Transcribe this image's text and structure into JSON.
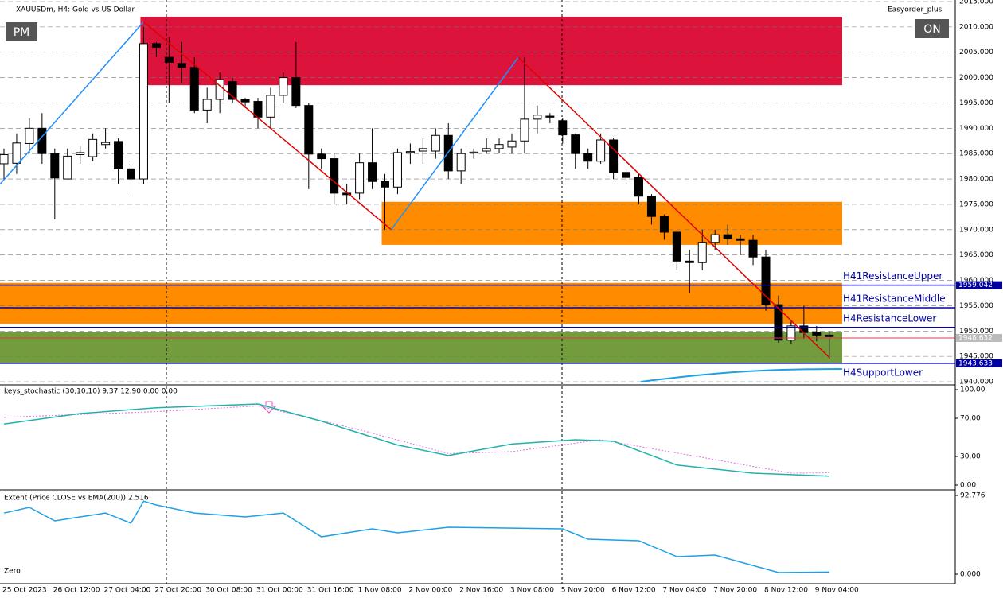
{
  "header": {
    "symbol": "XAUUSDm, H4:  Gold vs US Dollar",
    "expert": "Easyorder_plus",
    "left_button": "PM",
    "right_button": "ON"
  },
  "chart_data": {
    "type": "candlestick",
    "categories": [
      "25 Oct 2023",
      null,
      null,
      null,
      "26 Oct 12:00",
      null,
      null,
      null,
      "27 Oct 04:00",
      null,
      null,
      null,
      "27 Oct 20:00",
      null,
      null,
      null,
      "30 Oct 08:00",
      null,
      null,
      null,
      "31 Oct 00:00",
      null,
      null,
      null,
      "31 Oct 16:00",
      null,
      null,
      null,
      "1 Nov 08:00",
      null,
      null,
      null,
      "2 Nov 00:00",
      null,
      null,
      null,
      "2 Nov 16:00",
      null,
      null,
      null,
      "3 Nov 08:00",
      null,
      null,
      null,
      "5 Nov 20:00",
      null,
      null,
      null,
      "6 Nov 12:00",
      null,
      null,
      null,
      "7 Nov 04:00",
      null,
      null,
      null,
      "7 Nov 20:00",
      null,
      null,
      null,
      "8 Nov 12:00",
      null,
      null,
      null,
      "9 Nov 04:00",
      null
    ],
    "open": [
      1983,
      1983.1,
      1987,
      1990,
      1985,
      1980,
      1984.8,
      1984.4,
      1986.8,
      1987.4,
      1982,
      1980,
      2006.7,
      2004,
      2002.8,
      2002,
      1993.6,
      1995.7,
      1999.2,
      1995.7,
      1995.3,
      1992.2,
      1996.5,
      2000,
      1994.5,
      1984.9,
      1984,
      1977.2,
      1977.2,
      1983.2,
      1979.5,
      1978.4,
      1985.2,
      1985.5,
      1985.5,
      1988.6,
      1981.6,
      1985.1,
      1985.5,
      1986,
      1986.3,
      1987.5,
      1991.8,
      1992.4,
      1991.5,
      1988.7,
      1985,
      1983.5,
      1987.7,
      1981.3,
      1980.3,
      1976.6,
      1972.6,
      1969.5,
      1963.8,
      1963.5,
      1967.5,
      1969,
      1968.2,
      1967.9,
      1964.6,
      1955.2,
      1948.2,
      1951,
      1949.7,
      1949.2
    ],
    "high": [
      1986,
      1989,
      1992,
      1993,
      1986,
      1986,
      1986.5,
      1989,
      1990,
      1988,
      1983,
      2010,
      2007,
      2008,
      2007,
      2004,
      1998,
      2001,
      2000,
      1996,
      1996,
      1998,
      2001,
      2007,
      1995,
      1986,
      1985,
      1979,
      1985,
      1990,
      1981,
      1986,
      1987,
      1988,
      1990,
      1991,
      1986,
      1986,
      1988,
      1988,
      1989,
      2004,
      1994.5,
      1993,
      1992,
      1989,
      1986,
      1989,
      1988,
      1982,
      1981,
      1977,
      1973,
      1970,
      1966,
      1970,
      1970,
      1971,
      1969,
      1969,
      1966,
      1957,
      1952,
      1955,
      1951,
      1950
    ],
    "low": [
      1980,
      1981,
      1985,
      1983,
      1972,
      1980,
      1983,
      1983.5,
      1986,
      1979,
      1977,
      1979,
      2004,
      1995,
      1999,
      1993,
      1991,
      1993,
      1995,
      1994,
      1990,
      1990,
      1995,
      1994,
      1978,
      1982,
      1975,
      1975,
      1976,
      1978,
      1970,
      1977,
      1983,
      1983,
      1984,
      1980,
      1979,
      1984,
      1985,
      1985,
      1985,
      1985,
      1989,
      1991,
      1987,
      1982,
      1982,
      1983,
      1980,
      1979,
      1975,
      1971,
      1968,
      1962,
      1957.5,
      1962,
      1966,
      1967,
      1965,
      1963,
      1954,
      1947.7,
      1947.5,
      1948.5,
      1948,
      1944.5
    ],
    "close": [
      1984.8,
      1987.1,
      1990,
      1985,
      1980.2,
      1984.5,
      1985.2,
      1987.8,
      1987.2,
      1982,
      1980,
      2006.7,
      2006,
      2003,
      2002,
      1993.6,
      1995.7,
      1999.6,
      1995.7,
      1995.2,
      1992.2,
      1996.5,
      2000,
      1994.5,
      1984.9,
      1984,
      1977.2,
      1976.9,
      1983.2,
      1979.5,
      1978.4,
      1985.2,
      1985.4,
      1986,
      1988.6,
      1981.6,
      1985,
      1985.3,
      1986,
      1986.8,
      1987.5,
      1991.8,
      1992.6,
      1992.2,
      1988.7,
      1985,
      1983.5,
      1987.7,
      1981.3,
      1980.3,
      1976.6,
      1972.6,
      1969.5,
      1963.8,
      1963.5,
      1967.5,
      1969,
      1968.2,
      1967.9,
      1964.6,
      1955.2,
      1948.2,
      1951,
      1949.7,
      1949.2,
      1948.9
    ],
    "ylim": [
      1940,
      2015
    ],
    "yticks": [
      {
        "value": 2015,
        "label": "2015.000"
      },
      {
        "value": 2010,
        "label": "2010.000"
      },
      {
        "value": 2005,
        "label": "2005.000"
      },
      {
        "value": 2000,
        "label": "2000.000"
      },
      {
        "value": 1995,
        "label": "1995.000"
      },
      {
        "value": 1990,
        "label": "1990.000"
      },
      {
        "value": 1985,
        "label": "1985.000"
      },
      {
        "value": 1980,
        "label": "1980.000"
      },
      {
        "value": 1975,
        "label": "1975.000"
      },
      {
        "value": 1970,
        "label": "1970.000"
      },
      {
        "value": 1965,
        "label": "1965.000"
      },
      {
        "value": 1960,
        "label": "1960.000"
      },
      {
        "value": 1955,
        "label": "1955.000"
      },
      {
        "value": 1950,
        "label": "1950.000"
      },
      {
        "value": 1945,
        "label": "1945.000"
      },
      {
        "value": 1940,
        "label": "1940.000"
      }
    ],
    "grid": true,
    "zones": [
      {
        "color": "#dc143c",
        "from": 1998.5,
        "to": 2012,
        "start": 11
      },
      {
        "color": "#ff8c00",
        "from": 1967,
        "to": 1975.5,
        "start": 30
      },
      {
        "color": "#ff8c00",
        "from": 1951.4,
        "to": 1959.5,
        "start": 0
      },
      {
        "color": "#5b8c1a",
        "from": 1943.7,
        "to": 1949.8,
        "start": 0
      }
    ],
    "levels": [
      {
        "name": "H41ResistanceUpper",
        "value": 1959.042,
        "label": "1959.042",
        "color": "#0000a0"
      },
      {
        "name": "H41ResistanceMiddle",
        "value": 1954.6,
        "color": "#0000a0"
      },
      {
        "name": "H4ResistanceLower",
        "value": 1950.7,
        "color": "#0000a0"
      },
      {
        "name": "H4SupportLower",
        "value": 1943.633,
        "label": "1943.633",
        "color": "#0000a0"
      }
    ],
    "price_line": {
      "value": 1948.632,
      "label": "1948.632",
      "color": "#d04040"
    },
    "zigzag": {
      "index": [
        -0.3,
        11,
        30.5,
        40.5,
        65
      ],
      "values": [
        1979,
        2011,
        1970,
        2004,
        1944.8
      ]
    }
  },
  "stochastic": {
    "title": "keys_stochastic (30,10,10) 9.37 12.90 0.00 0.00",
    "ylim": [
      0,
      100
    ],
    "yticks": [
      {
        "value": 100,
        "label": "100.00"
      },
      {
        "value": 70,
        "label": "70.00"
      },
      {
        "value": 30,
        "label": "30.00"
      },
      {
        "value": 0,
        "label": "0.00"
      }
    ],
    "main": {
      "color": "#20b2aa",
      "index": [
        0,
        6,
        12,
        20,
        25,
        31,
        35,
        40,
        45,
        48,
        53,
        59,
        65
      ],
      "values": [
        64,
        75,
        81,
        85,
        67,
        42,
        31,
        43,
        47.5,
        46,
        21,
        12.5,
        9.37
      ]
    },
    "signal": {
      "color": "#e070e0",
      "index": [
        0,
        12,
        20,
        28,
        35,
        40,
        47,
        55,
        62,
        65
      ],
      "values": [
        71,
        77,
        83,
        58,
        33,
        35,
        47.5,
        29,
        12.5,
        12.9
      ]
    }
  },
  "extent": {
    "title": "Extent (Price CLOSE vs EMA(200)) 2.516",
    "zero_label": "Zero",
    "ylim": [
      0,
      92.776
    ],
    "yticks": [
      92.776,
      {
        "value": 0,
        "label": "0.000"
      }
    ],
    "line": {
      "color": "#1ea0e8",
      "index": [
        0,
        2,
        4,
        6,
        8,
        10,
        11,
        12,
        15,
        19,
        22,
        25,
        29,
        31,
        35,
        44,
        46,
        50,
        53,
        56,
        61,
        65
      ],
      "values": [
        72,
        78.7,
        62.8,
        67.5,
        72,
        60,
        86,
        81.5,
        72,
        67.5,
        72,
        44,
        53.4,
        48.7,
        55.3,
        53.4,
        41.2,
        39.4,
        20.6,
        22.5,
        1.9,
        2.516
      ]
    }
  }
}
